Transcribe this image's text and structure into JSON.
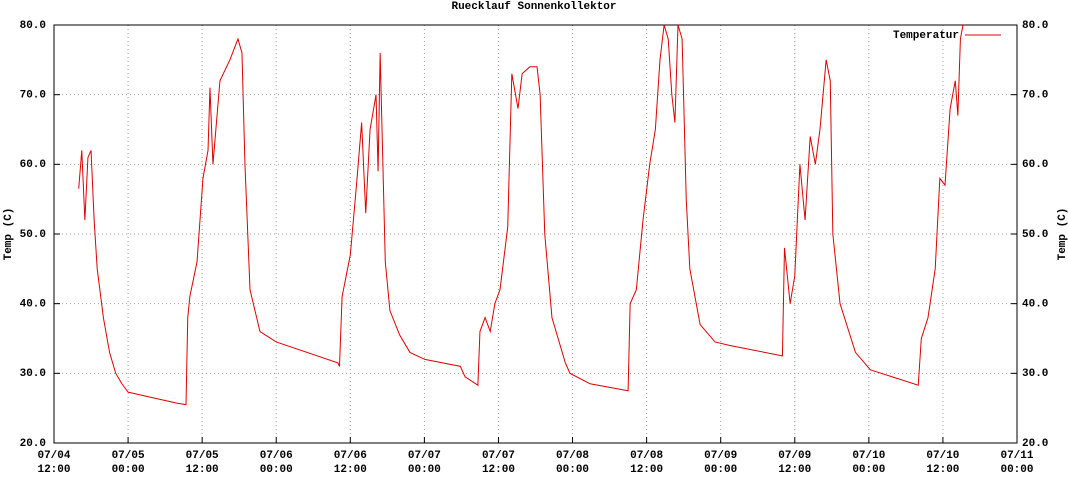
{
  "chart_data": {
    "type": "line",
    "title": "Ruecklauf Sonnenkollektor",
    "ylabel": "Temp (C)",
    "y2label": "Temp (C)",
    "grid": true,
    "legend": "top-right",
    "xlim": [
      "07/04 12:00",
      "07/11 00:00"
    ],
    "xticks": [
      "07/04 12:00",
      "07/05 00:00",
      "07/05 12:00",
      "07/06 00:00",
      "07/06 12:00",
      "07/07 00:00",
      "07/07 12:00",
      "07/08 00:00",
      "07/08 12:00",
      "07/09 00:00",
      "07/09 12:00",
      "07/10 00:00",
      "07/10 12:00",
      "07/11 00:00"
    ],
    "ylim": [
      20,
      80
    ],
    "yticks": [
      {
        "value": 20,
        "label": "20.0"
      },
      {
        "value": 30,
        "label": "30.0"
      },
      {
        "value": 40,
        "label": "40.0"
      },
      {
        "value": 50,
        "label": "50.0"
      },
      {
        "value": 60,
        "label": "60.0"
      },
      {
        "value": 70,
        "label": "70.0"
      },
      {
        "value": 80,
        "label": "80.0"
      }
    ],
    "y2lim": [
      20,
      80
    ],
    "y2ticks": [
      {
        "value": 20,
        "label": "20.0"
      },
      {
        "value": 30,
        "label": "30.0"
      },
      {
        "value": 40,
        "label": "40.0"
      },
      {
        "value": 50,
        "label": "50.0"
      },
      {
        "value": 60,
        "label": "60.0"
      },
      {
        "value": 70,
        "label": "70.0"
      },
      {
        "value": 80,
        "label": "80.0"
      }
    ],
    "x": [
      "07/04 16:00",
      "07/04 16:30",
      "07/04 17:00",
      "07/04 17:30",
      "07/04 18:00",
      "07/04 18:30",
      "07/04 19:00",
      "07/04 20:00",
      "07/04 21:00",
      "07/04 22:00",
      "07/04 23:00",
      "07/05 00:00",
      "07/05 04:00",
      "07/05 08:00",
      "07/05 09:23",
      "07/05 09:40",
      "07/05 10:00",
      "07/05 11:10",
      "07/05 12:08",
      "07/05 12:57",
      "07/05 13:16",
      "07/05 13:45",
      "07/05 14:53",
      "07/05 16:30",
      "07/05 17:48",
      "07/05 18:27",
      "07/05 18:56",
      "07/05 19:45",
      "07/05 21:22",
      "07/06 00:00",
      "07/06 10:00",
      "07/06 10:15",
      "07/06 10:40",
      "07/06 12:00",
      "07/06 13:00",
      "07/06 13:50",
      "07/06 14:30",
      "07/06 15:12",
      "07/06 16:10",
      "07/06 16:30",
      "07/06 16:50",
      "07/06 17:40",
      "07/06 18:25",
      "07/06 20:00",
      "07/06 21:40",
      "07/07 00:05",
      "07/07 05:50",
      "07/07 06:35",
      "07/07 08:40",
      "07/07 09:00",
      "07/07 09:50",
      "07/07 10:40",
      "07/07 11:25",
      "07/07 12:15",
      "07/07 13:30",
      "07/07 14:10",
      "07/07 15:10",
      "07/07 15:50",
      "07/07 17:05",
      "07/07 18:15",
      "07/07 18:45",
      "07/07 19:30",
      "07/07 20:40",
      "07/07 22:50",
      "07/07 23:35",
      "07/08 02:50",
      "07/08 09:00",
      "07/08 09:20",
      "07/08 10:20",
      "07/08 11:25",
      "07/08 12:30",
      "07/08 13:25",
      "07/08 14:10",
      "07/08 14:50",
      "07/08 15:30",
      "07/08 16:05",
      "07/08 16:35",
      "07/08 17:05",
      "07/08 17:45",
      "07/08 18:25",
      "07/08 19:00",
      "07/08 20:40",
      "07/08 23:05",
      "07/09 01:30",
      "07/09 10:00",
      "07/09 10:20",
      "07/09 11:15",
      "07/09 12:00",
      "07/09 12:50",
      "07/09 13:40",
      "07/09 14:30",
      "07/09 15:20",
      "07/09 16:05",
      "07/09 17:05",
      "07/09 17:45",
      "07/09 18:10",
      "07/09 19:20",
      "07/09 21:50",
      "07/10 00:15",
      "07/10 08:00",
      "07/10 08:30",
      "07/10 09:35",
      "07/10 10:45",
      "07/10 11:30",
      "07/10 12:20",
      "07/10 13:10",
      "07/10 14:00",
      "07/10 14:25",
      "07/10 14:50",
      "07/10 15:15"
    ],
    "series": [
      {
        "name": "Temperatur",
        "color": "#e00000",
        "values": [
          56.5,
          62,
          52,
          61,
          62,
          52,
          45,
          38,
          33,
          30,
          28.5,
          27.3,
          26.5,
          25.7,
          25.5,
          38,
          41,
          46,
          58,
          62,
          71,
          60,
          72,
          75,
          78,
          76,
          60,
          42,
          36,
          34.5,
          31.5,
          31,
          41,
          47,
          57,
          66,
          53,
          65,
          70,
          59,
          76,
          46,
          39,
          35.5,
          33,
          32,
          31,
          29.5,
          28.3,
          36,
          38,
          36,
          40,
          42,
          51,
          73,
          68,
          73,
          74,
          74,
          70,
          50,
          38,
          31.5,
          30,
          28.5,
          27.5,
          40,
          42,
          52,
          60,
          65,
          75,
          80,
          78,
          70,
          66,
          80,
          78,
          55,
          45,
          37,
          34.5,
          34,
          32.5,
          48,
          40,
          44,
          60,
          52,
          64,
          60,
          65,
          75,
          72,
          50,
          40,
          33,
          30.5,
          28.3,
          35,
          38,
          45,
          58,
          57,
          68,
          72,
          67,
          78,
          80
        ]
      }
    ]
  }
}
